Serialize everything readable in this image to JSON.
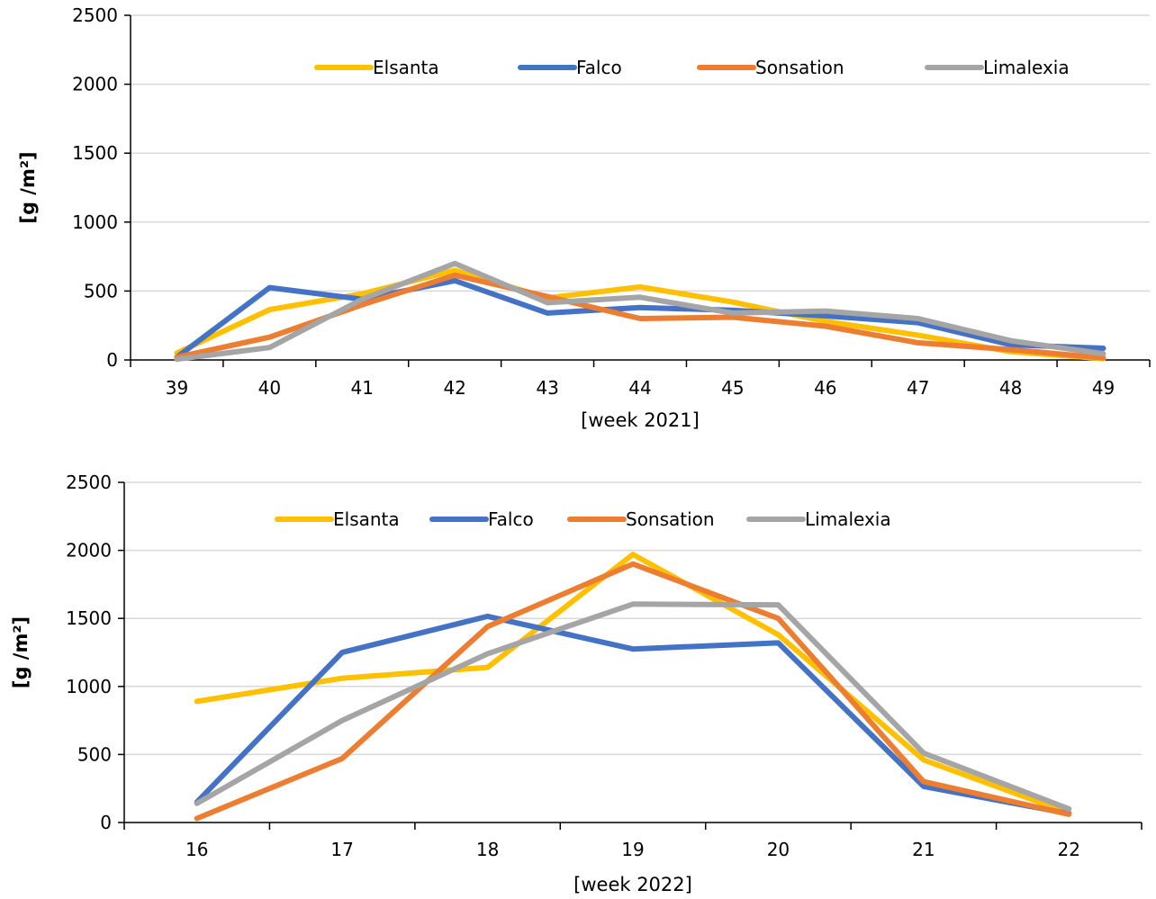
{
  "chart_data": [
    {
      "type": "line",
      "title": "",
      "xlabel": "[week 2021]",
      "ylabel": "[g /m²]",
      "categories": [
        "39",
        "40",
        "41",
        "42",
        "43",
        "44",
        "45",
        "46",
        "47",
        "48",
        "49"
      ],
      "ylim": [
        0,
        2500
      ],
      "yticks": [
        0,
        500,
        1000,
        1500,
        2000,
        2500
      ],
      "grid": true,
      "legend_position": "top",
      "series": [
        {
          "name": "Elsanta",
          "color": "#FFC000",
          "values": [
            50,
            365,
            480,
            650,
            450,
            530,
            420,
            280,
            180,
            60,
            10
          ]
        },
        {
          "name": "Falco",
          "color": "#4472C4",
          "values": [
            20,
            525,
            440,
            575,
            340,
            380,
            360,
            320,
            270,
            110,
            85
          ]
        },
        {
          "name": "Sonsation",
          "color": "#ED7D31",
          "values": [
            20,
            165,
            400,
            615,
            460,
            300,
            310,
            245,
            125,
            75,
            15
          ]
        },
        {
          "name": "Limalexia",
          "color": "#A5A5A5",
          "values": [
            5,
            90,
            440,
            700,
            415,
            455,
            340,
            355,
            300,
            140,
            45
          ]
        }
      ]
    },
    {
      "type": "line",
      "title": "",
      "xlabel": "[week 2022]",
      "ylabel": "[g /m²]",
      "categories": [
        "16",
        "17",
        "18",
        "19",
        "20",
        "21",
        "22"
      ],
      "ylim": [
        0,
        2500
      ],
      "yticks": [
        0,
        500,
        1000,
        1500,
        2000,
        2500
      ],
      "grid": true,
      "legend_position": "top",
      "series": [
        {
          "name": "Elsanta",
          "color": "#FFC000",
          "values": [
            890,
            1060,
            1140,
            1970,
            1380,
            460,
            70
          ]
        },
        {
          "name": "Falco",
          "color": "#4472C4",
          "values": [
            150,
            1250,
            1515,
            1275,
            1320,
            265,
            65
          ]
        },
        {
          "name": "Sonsation",
          "color": "#ED7D31",
          "values": [
            30,
            470,
            1440,
            1900,
            1500,
            300,
            60
          ]
        },
        {
          "name": "Limalexia",
          "color": "#A5A5A5",
          "values": [
            140,
            750,
            1240,
            1605,
            1600,
            510,
            100
          ]
        }
      ]
    }
  ]
}
